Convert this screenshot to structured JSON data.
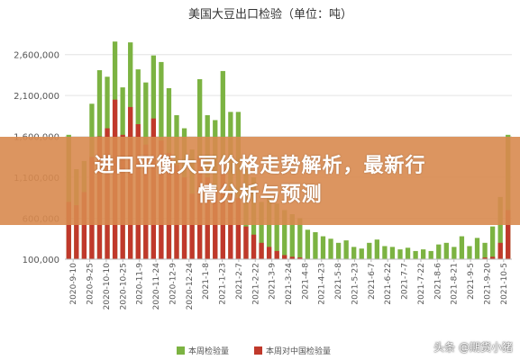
{
  "chart_data": {
    "type": "bar",
    "title": "美国大豆出口检验（单位：吨）",
    "ylim": [
      100000,
      2850000
    ],
    "y_ticks": [
      100000,
      600000,
      1100000,
      1600000,
      2100000,
      2600000
    ],
    "y_tick_labels": [
      "100,000",
      "600,000",
      "1,100,000",
      "1,600,000",
      "2,100,000",
      "2,600,000"
    ],
    "grid": true,
    "legend_position": "bottom",
    "x_tick_labels": [
      "2020-9-10",
      "2020-9-25",
      "2020-10-10",
      "2020-10-25",
      "2020-11-9",
      "2020-11-24",
      "2020-12-9",
      "2020-12-24",
      "2021-1-8",
      "2021-1-23",
      "2021-2-7",
      "2021-2-22",
      "2021-3-9",
      "2021-3-24",
      "2021-4-8",
      "2021-4-23",
      "2021-5-8",
      "2021-5-23",
      "2021-6-7",
      "2021-6-22",
      "2021-7-7",
      "2021-7-22",
      "2021-8-6",
      "2021-8-21",
      "2021-9-5",
      "2021-9-20",
      "2021-10-5"
    ],
    "series": [
      {
        "name": "本周检验量",
        "color": "#7cb342",
        "values": [
          1620000,
          1200000,
          1300000,
          2000000,
          2410000,
          2330000,
          2760000,
          2200000,
          2750000,
          2420000,
          2260000,
          2590000,
          2510000,
          2190000,
          1860000,
          1700000,
          1440000,
          2300000,
          1860000,
          1800000,
          2400000,
          1900000,
          1900000,
          1200000,
          1100000,
          800000,
          850000,
          780000,
          700000,
          650000,
          600000,
          460000,
          430000,
          380000,
          350000,
          300000,
          330000,
          250000,
          230000,
          300000,
          340000,
          260000,
          250000,
          220000,
          240000,
          200000,
          220000,
          200000,
          280000,
          300000,
          250000,
          380000,
          260000,
          360000,
          300000,
          500000,
          860000,
          1620000
        ]
      },
      {
        "name": "本周对中国检验量",
        "color": "#c0392b",
        "values": [
          800000,
          760000,
          920000,
          1350000,
          1600000,
          1700000,
          2050000,
          1620000,
          1960000,
          1750000,
          1500000,
          1820000,
          1550000,
          1400000,
          1250000,
          1100000,
          900000,
          1350000,
          1100000,
          950000,
          1300000,
          900000,
          850000,
          500000,
          400000,
          300000,
          250000,
          200000,
          150000,
          130000,
          120000,
          100000,
          100000,
          100000,
          100000,
          100000,
          100000,
          100000,
          100000,
          100000,
          100000,
          100000,
          100000,
          100000,
          100000,
          100000,
          100000,
          100000,
          100000,
          100000,
          100000,
          100000,
          100000,
          100000,
          120000,
          130000,
          300000,
          700000
        ]
      }
    ]
  },
  "banner": {
    "line1": "进口平衡大豆价格走势解析，最新行",
    "line2": "情分析与预测"
  },
  "watermark": "头条 @期货小猪"
}
